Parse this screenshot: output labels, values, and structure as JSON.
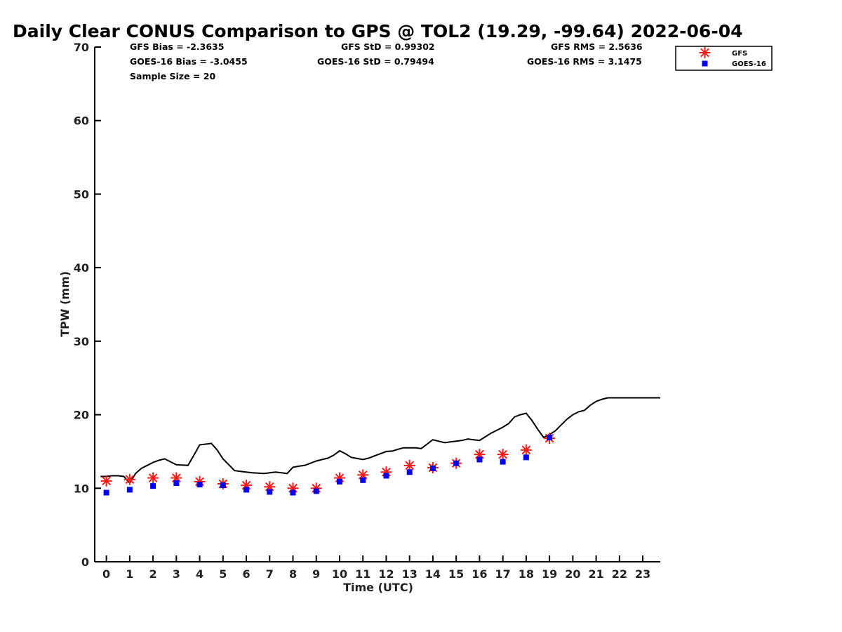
{
  "title": "Daily Clear CONUS Comparison to GPS @ TOL2 (19.29, -99.64) 2022-06-04",
  "stats": {
    "gfs_bias": "GFS Bias = -2.3635",
    "goes_bias": "GOES-16 Bias = -3.0455",
    "sample_size": "Sample Size = 20",
    "gfs_std": "GFS StD = 0.99302",
    "goes_std": "GOES-16 StD = 0.79494",
    "gfs_rms": "GFS RMS = 2.5636",
    "goes_rms": "GOES-16 RMS = 3.1475"
  },
  "chart_data": {
    "type": "line",
    "title": "Daily Clear CONUS Comparison to GPS @ TOL2 (19.29, -99.64) 2022-06-04",
    "xlabel": "Time (UTC)",
    "ylabel": "TPW (mm)",
    "xlim": [
      -0.5,
      23.75
    ],
    "ylim": [
      0,
      70
    ],
    "xticks": [
      "0",
      "1",
      "2",
      "3",
      "4",
      "5",
      "6",
      "7",
      "8",
      "9",
      "10",
      "11",
      "12",
      "13",
      "14",
      "15",
      "16",
      "17",
      "18",
      "19",
      "20",
      "21",
      "22",
      "23"
    ],
    "yticks": [
      "0",
      "10",
      "20",
      "30",
      "40",
      "50",
      "60",
      "70"
    ],
    "grid": false,
    "legend": {
      "placement": "top-right",
      "entries": [
        "GFS",
        "GOES-16"
      ]
    },
    "colors": {
      "gps": "#000000",
      "gfs": "#ff1a1a",
      "goes": "#0000ee"
    },
    "series": [
      {
        "name": "",
        "kind": "line",
        "x": [
          -0.25,
          0,
          0.25,
          0.5,
          0.75,
          1,
          1.25,
          1.5,
          1.75,
          2,
          2.25,
          2.5,
          2.75,
          3,
          3.25,
          3.5,
          3.75,
          4,
          4.25,
          4.5,
          4.75,
          5,
          5.25,
          5.5,
          5.75,
          6,
          6.25,
          6.5,
          6.75,
          7,
          7.25,
          7.5,
          7.75,
          8,
          8.25,
          8.5,
          8.75,
          9,
          9.25,
          9.5,
          9.75,
          10,
          10.25,
          10.5,
          10.75,
          11,
          11.25,
          11.5,
          11.75,
          12,
          12.25,
          12.5,
          12.75,
          13,
          13.25,
          13.5,
          13.75,
          14,
          14.25,
          14.5,
          14.75,
          15,
          15.25,
          15.5,
          15.75,
          16,
          16.25,
          16.5,
          16.75,
          17,
          17.25,
          17.5,
          17.75,
          18,
          18.25,
          18.5,
          18.75,
          19,
          19.25,
          19.5,
          19.75,
          20,
          20.25,
          20.5,
          20.75,
          21,
          21.25,
          21.5,
          21.75,
          22,
          22.25,
          22.5,
          22.75,
          23,
          23.25,
          23.5,
          23.75
        ],
        "values": [
          11.6,
          11.6,
          11.7,
          11.7,
          11.6,
          10.7,
          12.0,
          12.7,
          13.1,
          13.5,
          13.8,
          14.0,
          13.6,
          13.2,
          13.15,
          13.1,
          14.5,
          15.9,
          16.0,
          16.1,
          15.2,
          14.0,
          13.2,
          12.4,
          12.3,
          12.2,
          12.1,
          12.05,
          12.0,
          12.1,
          12.2,
          12.1,
          12.0,
          12.85,
          13.0,
          13.1,
          13.4,
          13.7,
          13.9,
          14.1,
          14.5,
          15.1,
          14.7,
          14.2,
          14.05,
          13.9,
          14.1,
          14.4,
          14.7,
          15.0,
          15.05,
          15.3,
          15.5,
          15.5,
          15.5,
          15.4,
          16.0,
          16.6,
          16.4,
          16.2,
          16.3,
          16.4,
          16.5,
          16.7,
          16.6,
          16.5,
          17.0,
          17.5,
          17.9,
          18.3,
          18.8,
          19.7,
          20.0,
          20.2,
          19.2,
          18.0,
          16.9,
          17.3,
          17.8,
          18.6,
          19.4,
          20.0,
          20.4,
          20.6,
          21.3,
          21.8,
          22.1,
          22.3,
          22.3,
          22.3,
          22.3,
          22.3,
          22.3,
          22.3,
          22.3,
          22.3,
          22.3
        ]
      },
      {
        "name": "GFS",
        "kind": "marker-star",
        "x": [
          0,
          1,
          2,
          3,
          4,
          5,
          6,
          7,
          8,
          9,
          10,
          11,
          12,
          13,
          14,
          15,
          16,
          17,
          18,
          19
        ],
        "values": [
          11.0,
          11.2,
          11.4,
          11.4,
          10.9,
          10.6,
          10.4,
          10.2,
          10.0,
          10.0,
          11.4,
          11.8,
          12.2,
          13.1,
          12.8,
          13.4,
          14.6,
          14.6,
          15.2,
          16.8
        ]
      },
      {
        "name": "GOES-16",
        "kind": "marker-square",
        "x": [
          0,
          1,
          2,
          3,
          4,
          5,
          6,
          7,
          8,
          9,
          10,
          11,
          12,
          13,
          14,
          15,
          16,
          17,
          18,
          19
        ],
        "values": [
          9.4,
          9.8,
          10.3,
          10.7,
          10.5,
          10.4,
          9.8,
          9.5,
          9.4,
          9.6,
          10.9,
          11.1,
          11.7,
          12.2,
          12.7,
          13.4,
          13.9,
          13.6,
          14.2,
          16.9
        ]
      }
    ]
  }
}
